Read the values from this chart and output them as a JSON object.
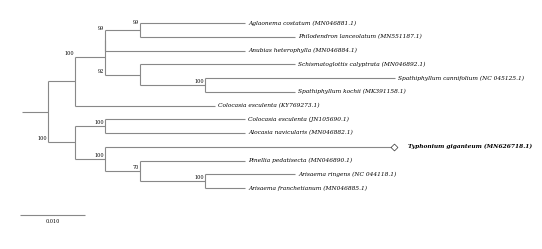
{
  "background_color": "#ffffff",
  "tree_color": "#888888",
  "text_color": "#000000",
  "scale_bar_label": "0.010",
  "taxa": [
    {
      "name": "Aglaonema costatum (MN046881.1)",
      "bold": false,
      "italic": true
    },
    {
      "name": "Philodendron lanceolatum (MN551187.1)",
      "bold": false,
      "italic": true
    },
    {
      "name": "Anubias heterophylla (MN046884.1)",
      "bold": false,
      "italic": true
    },
    {
      "name": "Schismatoglottis calyptrata (MN046892.1)",
      "bold": false,
      "italic": true
    },
    {
      "name": "Spathiphyllum cannifolium (NC 045125.1)",
      "bold": false,
      "italic": true
    },
    {
      "name": "Spathiphyllum kochii (MK391158.1)",
      "bold": false,
      "italic": true
    },
    {
      "name": "Colocasia esculenta (KY769273.1)",
      "bold": false,
      "italic": true
    },
    {
      "name": "Colocasia esculenta (JN105690.1)",
      "bold": false,
      "italic": true
    },
    {
      "name": "Alocasia navicularis (MN046882.1)",
      "bold": false,
      "italic": true
    },
    {
      "name": "Typhonium giganteum (MN626718.1)",
      "bold": true,
      "italic": true
    },
    {
      "name": "Pinellia pedatisecta (MN046890.1)",
      "bold": false,
      "italic": true
    },
    {
      "name": "Arisaema ringens (NC 044118.1)",
      "bold": false,
      "italic": true
    },
    {
      "name": "Arisaema franchetianum (MN046885.1)",
      "bold": false,
      "italic": true
    }
  ]
}
